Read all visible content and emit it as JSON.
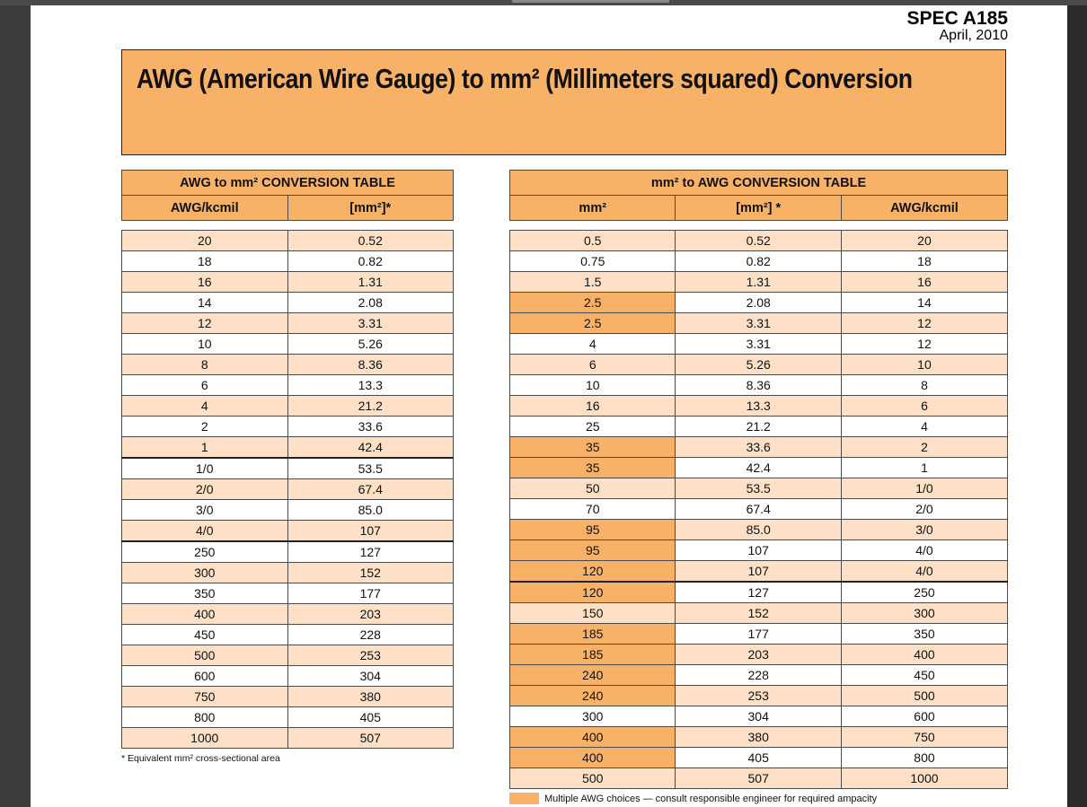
{
  "spec": {
    "code": "SPEC A185",
    "date": "April, 2010"
  },
  "title": "AWG (American Wire Gauge) to mm² (Millimeters squared) Conversion",
  "colors": {
    "accent": "#f7b267",
    "stripe": "#fde0c5"
  },
  "awg_to_mm2": {
    "title": "AWG to mm² CONVERSION TABLE",
    "columns": [
      "AWG/kcmil",
      "[mm²]*"
    ],
    "rows": [
      [
        "20",
        "0.52"
      ],
      [
        "18",
        "0.82"
      ],
      [
        "16",
        "1.31"
      ],
      [
        "14",
        "2.08"
      ],
      [
        "12",
        "3.31"
      ],
      [
        "10",
        "5.26"
      ],
      [
        "8",
        "8.36"
      ],
      [
        "6",
        "13.3"
      ],
      [
        "4",
        "21.2"
      ],
      [
        "2",
        "33.6"
      ],
      [
        "1",
        "42.4"
      ],
      [
        "1/0",
        "53.5"
      ],
      [
        "2/0",
        "67.4"
      ],
      [
        "3/0",
        "85.0"
      ],
      [
        "4/0",
        "107"
      ],
      [
        "250",
        "127"
      ],
      [
        "300",
        "152"
      ],
      [
        "350",
        "177"
      ],
      [
        "400",
        "203"
      ],
      [
        "450",
        "228"
      ],
      [
        "500",
        "253"
      ],
      [
        "600",
        "304"
      ],
      [
        "750",
        "380"
      ],
      [
        "800",
        "405"
      ],
      [
        "1000",
        "507"
      ]
    ],
    "footnote": "* Equivalent mm² cross-sectional area"
  },
  "mm2_to_awg": {
    "title": "mm² to AWG CONVERSION TABLE",
    "columns": [
      "mm²",
      "[mm²] *",
      "AWG/kcmil"
    ],
    "rows": [
      {
        "mm2": "0.5",
        "eq": "0.52",
        "awg": "20",
        "multi": false
      },
      {
        "mm2": "0.75",
        "eq": "0.82",
        "awg": "18",
        "multi": false
      },
      {
        "mm2": "1.5",
        "eq": "1.31",
        "awg": "16",
        "multi": false
      },
      {
        "mm2": "2.5",
        "eq": "2.08",
        "awg": "14",
        "multi": true
      },
      {
        "mm2": "2.5",
        "eq": "3.31",
        "awg": "12",
        "multi": true
      },
      {
        "mm2": "4",
        "eq": "3.31",
        "awg": "12",
        "multi": false
      },
      {
        "mm2": "6",
        "eq": "5.26",
        "awg": "10",
        "multi": false
      },
      {
        "mm2": "10",
        "eq": "8.36",
        "awg": "8",
        "multi": false
      },
      {
        "mm2": "16",
        "eq": "13.3",
        "awg": "6",
        "multi": false
      },
      {
        "mm2": "25",
        "eq": "21.2",
        "awg": "4",
        "multi": false
      },
      {
        "mm2": "35",
        "eq": "33.6",
        "awg": "2",
        "multi": true
      },
      {
        "mm2": "35",
        "eq": "42.4",
        "awg": "1",
        "multi": true
      },
      {
        "mm2": "50",
        "eq": "53.5",
        "awg": "1/0",
        "multi": false
      },
      {
        "mm2": "70",
        "eq": "67.4",
        "awg": "2/0",
        "multi": false
      },
      {
        "mm2": "95",
        "eq": "85.0",
        "awg": "3/0",
        "multi": true
      },
      {
        "mm2": "95",
        "eq": "107",
        "awg": "4/0",
        "multi": true
      },
      {
        "mm2": "120",
        "eq": "107",
        "awg": "4/0",
        "multi": true
      },
      {
        "mm2": "120",
        "eq": "127",
        "awg": "250",
        "multi": true
      },
      {
        "mm2": "150",
        "eq": "152",
        "awg": "300",
        "multi": false
      },
      {
        "mm2": "185",
        "eq": "177",
        "awg": "350",
        "multi": true
      },
      {
        "mm2": "185",
        "eq": "203",
        "awg": "400",
        "multi": true
      },
      {
        "mm2": "240",
        "eq": "228",
        "awg": "450",
        "multi": true
      },
      {
        "mm2": "240",
        "eq": "253",
        "awg": "500",
        "multi": true
      },
      {
        "mm2": "300",
        "eq": "304",
        "awg": "600",
        "multi": false
      },
      {
        "mm2": "400",
        "eq": "380",
        "awg": "750",
        "multi": true
      },
      {
        "mm2": "400",
        "eq": "405",
        "awg": "800",
        "multi": true
      },
      {
        "mm2": "500",
        "eq": "507",
        "awg": "1000",
        "multi": false
      }
    ],
    "legend": "Multiple AWG choices — consult responsible engineer for required ampacity"
  }
}
